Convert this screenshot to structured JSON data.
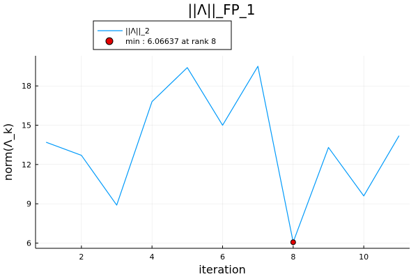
{
  "chart_data": {
    "type": "line",
    "title": "||Λ||_FP_1",
    "xlabel": "iteration",
    "ylabel": "norm(Λ_k)",
    "xlim": [
      0.7,
      11.3
    ],
    "ylim": [
      5.6,
      20.3
    ],
    "xticks": [
      2,
      4,
      6,
      8,
      10
    ],
    "yticks": [
      6,
      9,
      12,
      15,
      18
    ],
    "grid": true,
    "legend_position": "top-left outside",
    "series": [
      {
        "name": "||Λ||_2",
        "color": "#009AFA",
        "x": [
          1,
          2,
          3,
          4,
          5,
          6,
          7,
          8,
          9,
          10,
          11
        ],
        "y": [
          13.7,
          12.7,
          8.9,
          16.8,
          19.4,
          15.0,
          19.5,
          6.07,
          13.3,
          9.6,
          14.2
        ]
      }
    ],
    "marker": {
      "name": "min : 6.06637 at rank 8",
      "color": "#E30000",
      "x": 8,
      "y": 6.06637
    }
  }
}
